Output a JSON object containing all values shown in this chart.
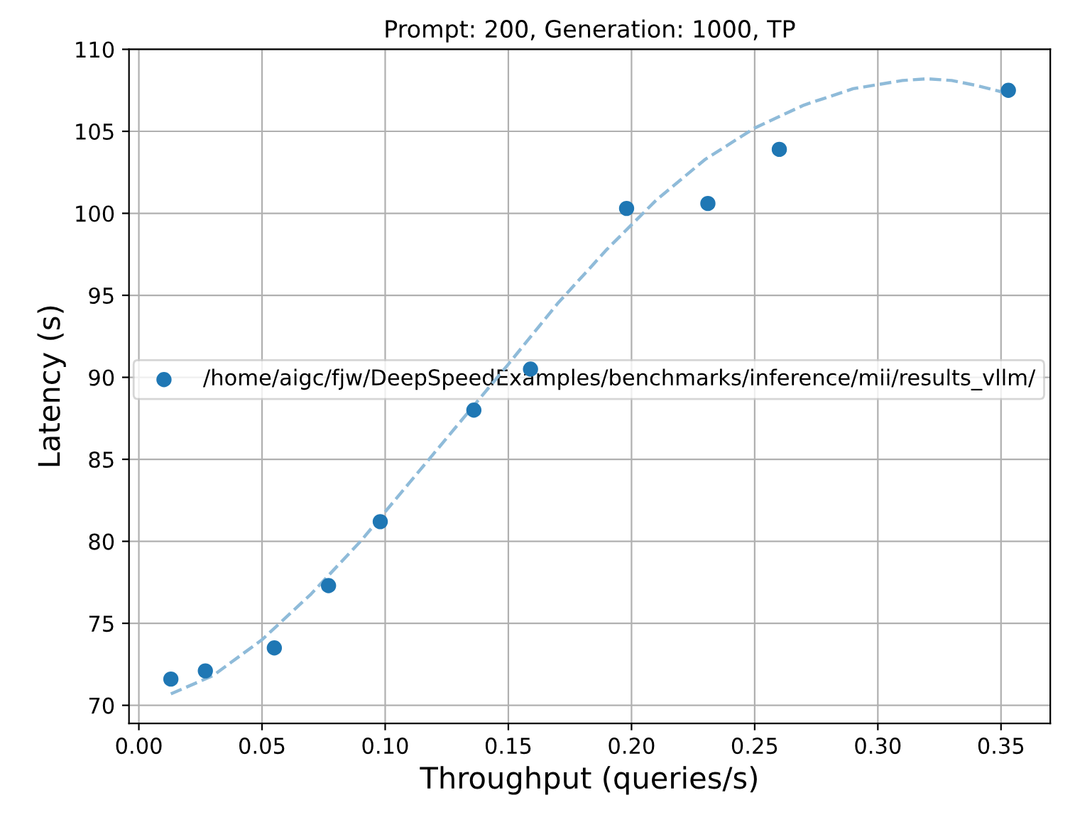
{
  "chart_data": {
    "type": "scatter",
    "title": "Prompt: 200, Generation: 1000, TP",
    "xlabel": "Throughput (queries/s)",
    "ylabel": "Latency (s)",
    "xlim": [
      -0.004,
      0.37
    ],
    "ylim": [
      68.9,
      110
    ],
    "xticks": [
      {
        "value": 0,
        "label": "0.00"
      },
      {
        "value": 0.05,
        "label": "0.05"
      },
      {
        "value": 0.1,
        "label": "0.10"
      },
      {
        "value": 0.15,
        "label": "0.15"
      },
      {
        "value": 0.2,
        "label": "0.20"
      },
      {
        "value": 0.25,
        "label": "0.25"
      },
      {
        "value": 0.3,
        "label": "0.30"
      },
      {
        "value": 0.35,
        "label": "0.35"
      }
    ],
    "yticks": [
      70,
      75,
      80,
      85,
      90,
      95,
      100,
      105,
      110
    ],
    "grid": true,
    "legend": "center left",
    "series": [
      {
        "name": "/home/aigc/fjw/DeepSpeedExamples/benchmarks/inference/mii/results_vllm/",
        "color": "#1f77b4",
        "marker": "circle",
        "x": [
          0.013,
          0.027,
          0.055,
          0.077,
          0.098,
          0.136,
          0.159,
          0.198,
          0.231,
          0.26,
          0.353
        ],
        "values": [
          71.6,
          72.1,
          73.5,
          77.3,
          81.2,
          88.0,
          90.5,
          100.3,
          100.6,
          103.9,
          107.5
        ]
      },
      {
        "type": "line",
        "line_style": "dashed",
        "marker": "none",
        "color": "#8fbbd9",
        "x": [
          0.013,
          0.03,
          0.05,
          0.07,
          0.09,
          0.11,
          0.13,
          0.15,
          0.17,
          0.19,
          0.21,
          0.23,
          0.25,
          0.27,
          0.29,
          0.31,
          0.32,
          0.33,
          0.34,
          0.353
        ],
        "values": [
          70.7,
          71.8,
          74.0,
          76.8,
          80.0,
          83.6,
          87.2,
          90.8,
          94.5,
          97.8,
          100.8,
          103.3,
          105.2,
          106.6,
          107.6,
          108.1,
          108.2,
          108.1,
          107.8,
          107.3
        ]
      }
    ]
  }
}
